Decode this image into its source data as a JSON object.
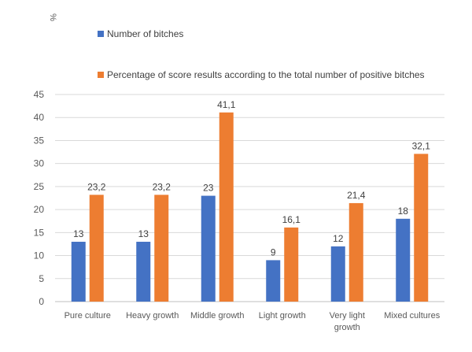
{
  "chart_data": {
    "type": "bar",
    "title": "",
    "ylabel": "%",
    "xlabel": "",
    "ylim": [
      0,
      45
    ],
    "yticks": [
      0,
      5,
      10,
      15,
      20,
      25,
      30,
      35,
      40,
      45
    ],
    "grid": true,
    "legend_position": "top",
    "categories": [
      "Pure culture",
      "Heavy growth",
      "Middle growth",
      "Light growth",
      "Very light growth",
      "Mixed cultures"
    ],
    "series": [
      {
        "name": "Number of bitches",
        "color": "#4472C4",
        "values": [
          13,
          13,
          23,
          9,
          12,
          18
        ],
        "labels": [
          "13",
          "13",
          "23",
          "9",
          "12",
          "18"
        ]
      },
      {
        "name": "Percentage of score results according to the total number of positive bitches",
        "color": "#ED7D31",
        "values": [
          23.2,
          23.2,
          41.1,
          16.1,
          21.4,
          32.1
        ],
        "labels": [
          "23,2",
          "23,2",
          "41,1",
          "16,1",
          "21,4",
          "32,1"
        ]
      }
    ]
  }
}
